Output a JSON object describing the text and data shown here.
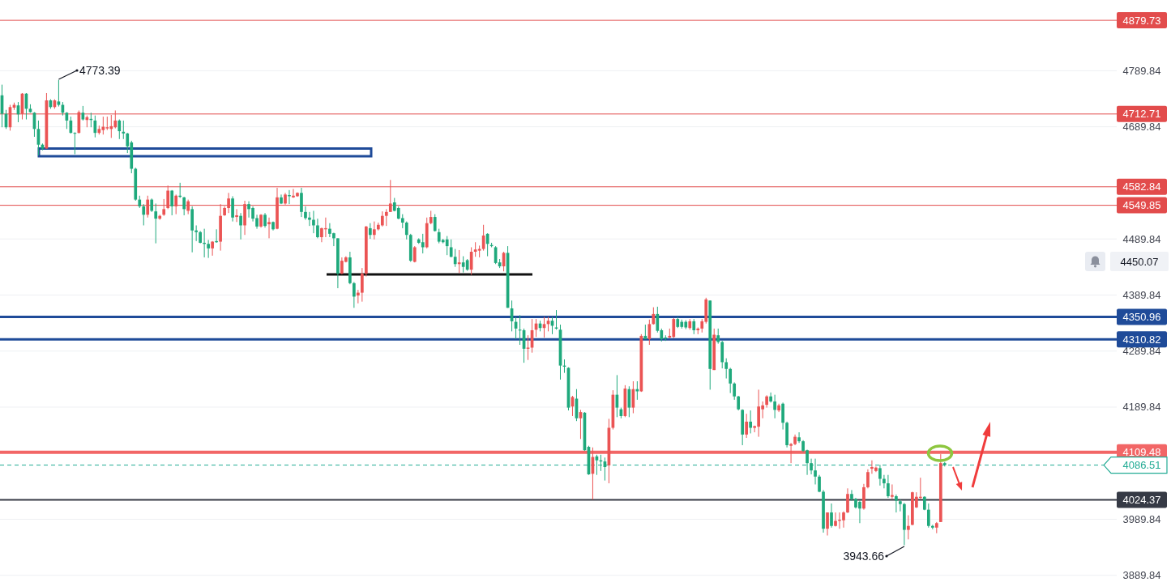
{
  "chart_data": {
    "type": "candlestick",
    "categories": [
      null,
      null,
      null,
      null,
      null,
      null,
      null,
      null,
      null,
      null,
      null,
      null,
      null,
      null,
      null,
      null,
      null,
      null,
      null,
      null,
      null,
      null,
      null,
      null,
      null,
      null,
      null,
      null,
      null,
      null,
      null,
      null,
      null,
      null,
      null,
      null,
      null,
      null,
      null,
      null,
      null,
      null,
      null,
      null,
      null,
      null,
      null,
      null,
      null,
      null,
      null,
      null,
      null,
      null,
      null,
      null,
      null,
      null,
      null,
      null,
      null,
      null,
      null,
      null,
      null,
      null,
      null,
      null,
      null,
      null,
      null,
      null,
      null,
      null,
      null,
      null,
      null,
      null,
      null,
      null,
      null,
      null,
      null,
      null,
      null,
      null,
      null,
      null,
      null,
      null,
      null,
      null,
      null,
      null,
      null,
      null,
      null,
      null,
      null,
      null,
      null,
      null,
      null,
      null,
      null,
      null,
      null,
      null,
      null,
      null,
      null,
      null,
      null,
      null,
      null,
      null,
      null,
      null,
      null,
      null,
      null,
      null,
      null,
      null,
      null,
      null,
      null,
      null,
      null,
      null,
      null,
      null,
      null,
      null,
      null,
      null,
      null,
      null,
      null,
      null,
      null,
      null,
      null,
      null,
      null,
      null,
      null,
      null,
      null,
      null,
      null,
      null,
      null,
      null,
      null,
      null,
      null,
      null,
      null,
      null,
      null,
      null,
      null,
      null,
      null,
      null,
      null,
      null,
      null,
      null,
      null,
      null,
      null,
      null,
      null,
      null,
      null,
      null,
      null,
      null,
      null,
      null,
      null,
      null,
      null,
      null,
      null,
      null,
      null,
      null,
      null,
      null,
      null,
      null,
      null,
      null,
      null,
      null,
      null,
      null,
      null,
      null,
      null,
      null,
      null,
      null,
      null,
      null,
      null,
      null,
      null,
      null,
      null,
      null,
      null,
      null,
      null,
      null,
      null,
      null,
      null,
      null,
      null,
      null,
      null,
      null,
      null,
      null,
      null,
      null,
      null,
      null,
      null,
      null,
      null,
      null,
      null,
      null,
      null,
      null,
      null,
      null,
      null,
      null,
      null,
      null,
      null,
      null,
      null,
      null,
      null,
      null,
      null,
      null,
      null,
      null,
      null,
      null,
      null,
      null,
      null,
      null,
      null,
      null,
      null,
      null,
      null,
      null,
      null,
      null,
      null,
      null,
      null,
      null,
      null,
      null
    ],
    "ohlc": [
      [
        4746,
        4765,
        4689,
        4713
      ],
      [
        4713,
        4720,
        4686,
        4689
      ],
      [
        4689,
        4729,
        4683,
        4725
      ],
      [
        4724,
        4733,
        4720,
        4729
      ],
      [
        4728,
        4734,
        4698,
        4712
      ],
      [
        4713,
        4750,
        4703,
        4749
      ],
      [
        4749,
        4750,
        4703,
        4722
      ],
      [
        4722,
        4730,
        4715,
        4716
      ],
      [
        4715,
        4716,
        4672,
        4686
      ],
      [
        4686,
        4701,
        4639,
        4658
      ],
      [
        4658,
        4660,
        4648,
        4651
      ],
      [
        4651,
        4750,
        4651,
        4737
      ],
      [
        4737,
        4739,
        4722,
        4725
      ],
      [
        4725,
        4739,
        4722,
        4737
      ],
      [
        4735,
        4773.39,
        4726,
        4729
      ],
      [
        4729,
        4734,
        4710,
        4715
      ],
      [
        4715,
        4716,
        4686,
        4701
      ],
      [
        4701,
        4708,
        4678,
        4679
      ],
      [
        4679,
        4680,
        4641,
        4678
      ],
      [
        4679,
        4719,
        4678,
        4716
      ],
      [
        4715,
        4727,
        4701,
        4703
      ],
      [
        4702,
        4710,
        4689,
        4707
      ],
      [
        4704,
        4715,
        4689,
        4702
      ],
      [
        4701,
        4710,
        4671,
        4679
      ],
      [
        4679,
        4692,
        4676,
        4686
      ],
      [
        4684,
        4708,
        4676,
        4690
      ],
      [
        4687,
        4708,
        4684,
        4689
      ],
      [
        4686,
        4711,
        4670,
        4691
      ],
      [
        4689,
        4719,
        4687,
        4701
      ],
      [
        4701,
        4703,
        4668,
        4682
      ],
      [
        4681,
        4701,
        4668,
        4678
      ],
      [
        4678,
        4679,
        4643,
        4655
      ],
      [
        4662,
        4665,
        4607,
        4615
      ],
      [
        4615,
        4617,
        4558,
        4560
      ],
      [
        4560,
        4567,
        4545,
        4548
      ],
      [
        4548,
        4552,
        4514,
        4533
      ],
      [
        4533,
        4567,
        4528,
        4560
      ],
      [
        4560,
        4562,
        4538,
        4540
      ],
      [
        4539,
        4553,
        4482,
        4526
      ],
      [
        4526,
        4533,
        4524,
        4531
      ],
      [
        4533,
        4561,
        4531,
        4543
      ],
      [
        4545,
        4585,
        4543,
        4576
      ],
      [
        4576,
        4577,
        4532,
        4548
      ],
      [
        4548,
        4569,
        4534,
        4567
      ],
      [
        4567,
        4590,
        4563,
        4565
      ],
      [
        4564,
        4565,
        4532,
        4543
      ],
      [
        4540,
        4560,
        4534,
        4557
      ],
      [
        4543,
        4548,
        4466,
        4505
      ],
      [
        4505,
        4514,
        4486,
        4502
      ],
      [
        4502,
        4504,
        4482,
        4483
      ],
      [
        4483,
        4508,
        4457,
        4481
      ],
      [
        4481,
        4488,
        4456,
        4473
      ],
      [
        4473,
        4486,
        4460,
        4485
      ],
      [
        4486,
        4507,
        4483,
        4484
      ],
      [
        4485,
        4552,
        4469,
        4531
      ],
      [
        4532,
        4548,
        4531,
        4545
      ],
      [
        4545,
        4572,
        4536,
        4562
      ],
      [
        4562,
        4566,
        4521,
        4528
      ],
      [
        4529,
        4543,
        4520,
        4532
      ],
      [
        4531,
        4536,
        4489,
        4514
      ],
      [
        4514,
        4558,
        4497,
        4552
      ],
      [
        4552,
        4557,
        4528,
        4543
      ],
      [
        4545,
        4548,
        4521,
        4526
      ],
      [
        4527,
        4533,
        4508,
        4512
      ],
      [
        4512,
        4534,
        4510,
        4533
      ],
      [
        4533,
        4536,
        4510,
        4513
      ],
      [
        4516,
        4528,
        4491,
        4520
      ],
      [
        4520,
        4521,
        4505,
        4507
      ],
      [
        4508,
        4581,
        4507,
        4564
      ],
      [
        4564,
        4569,
        4552,
        4553
      ],
      [
        4553,
        4572,
        4551,
        4569
      ],
      [
        4568,
        4577,
        4552,
        4566
      ],
      [
        4564,
        4579,
        4563,
        4567
      ],
      [
        4566,
        4573,
        4565,
        4572
      ],
      [
        4572,
        4581,
        4529,
        4538
      ],
      [
        4538,
        4548,
        4524,
        4527
      ],
      [
        4528,
        4538,
        4513,
        4524
      ],
      [
        4524,
        4540,
        4500,
        4514
      ],
      [
        4514,
        4526,
        4491,
        4493
      ],
      [
        4493,
        4510,
        4484,
        4509
      ],
      [
        4507,
        4528,
        4493,
        4509
      ],
      [
        4508,
        4518,
        4493,
        4499
      ],
      [
        4500,
        4501,
        4477,
        4491
      ],
      [
        4491,
        4491,
        4402,
        4428
      ],
      [
        4428,
        4457,
        4427,
        4451
      ],
      [
        4449,
        4459,
        4448,
        4457
      ],
      [
        4457,
        4467,
        4409,
        4411
      ],
      [
        4411,
        4413,
        4367,
        4387
      ],
      [
        4389,
        4399,
        4375,
        4394
      ],
      [
        4394,
        4438,
        4378,
        4428
      ],
      [
        4428,
        4513,
        4423,
        4512
      ],
      [
        4509,
        4518,
        4490,
        4497
      ],
      [
        4497,
        4521,
        4489,
        4507
      ],
      [
        4507,
        4519,
        4505,
        4515
      ],
      [
        4514,
        4539,
        4512,
        4531
      ],
      [
        4531,
        4543,
        4513,
        4538
      ],
      [
        4538,
        4595,
        4538,
        4553
      ],
      [
        4555,
        4563,
        4539,
        4540
      ],
      [
        4545,
        4548,
        4525,
        4526
      ],
      [
        4527,
        4534,
        4509,
        4519
      ],
      [
        4519,
        4521,
        4489,
        4497
      ],
      [
        4497,
        4499,
        4449,
        4451
      ],
      [
        4449,
        4477,
        4448,
        4475
      ],
      [
        4489,
        4491,
        4481,
        4483
      ],
      [
        4484,
        4499,
        4464,
        4475
      ],
      [
        4475,
        4528,
        4473,
        4518
      ],
      [
        4518,
        4540,
        4516,
        4529
      ],
      [
        4529,
        4534,
        4503,
        4504
      ],
      [
        4502,
        4508,
        4482,
        4485
      ],
      [
        4488,
        4490,
        4482,
        4484
      ],
      [
        4489,
        4495,
        4461,
        4477
      ],
      [
        4475,
        4489,
        4457,
        4458
      ],
      [
        4458,
        4472,
        4440,
        4445
      ],
      [
        4445,
        4470,
        4429,
        4448
      ],
      [
        4448,
        4459,
        4430,
        4440
      ],
      [
        4452,
        4454,
        4433,
        4435
      ],
      [
        4435,
        4475,
        4426,
        4467
      ],
      [
        4467,
        4484,
        4458,
        4471
      ],
      [
        4469,
        4478,
        4457,
        4472
      ],
      [
        4472,
        4515,
        4469,
        4496
      ],
      [
        4499,
        4500,
        4459,
        4481
      ],
      [
        4479,
        4483,
        4475,
        4477
      ],
      [
        4475,
        4477,
        4445,
        4447
      ],
      [
        4448,
        4454,
        4438,
        4441
      ],
      [
        4441,
        4467,
        4432,
        4465
      ],
      [
        4465,
        4477,
        4367,
        4367
      ],
      [
        4366,
        4380,
        4325,
        4343
      ],
      [
        4342,
        4351,
        4311,
        4330
      ],
      [
        4328,
        4354,
        4301,
        4327
      ],
      [
        4327,
        4330,
        4269,
        4294
      ],
      [
        4294,
        4318,
        4274,
        4296
      ],
      [
        4296,
        4347,
        4287,
        4327
      ],
      [
        4328,
        4347,
        4315,
        4339
      ],
      [
        4339,
        4344,
        4325,
        4331
      ],
      [
        4331,
        4351,
        4314,
        4338
      ],
      [
        4338,
        4351,
        4325,
        4344
      ],
      [
        4344,
        4351,
        4320,
        4335
      ],
      [
        4332,
        4363,
        4328,
        4330
      ],
      [
        4328,
        4337,
        4239,
        4264
      ],
      [
        4264,
        4275,
        4251,
        4262
      ],
      [
        4260,
        4261,
        4184,
        4189
      ],
      [
        4191,
        4210,
        4174,
        4208
      ],
      [
        4205,
        4222,
        4165,
        4170
      ],
      [
        4170,
        4185,
        4133,
        4181
      ],
      [
        4180,
        4181,
        4112,
        4113
      ],
      [
        4119,
        4121,
        4069,
        4070
      ],
      [
        4071,
        4118,
        4025,
        4101
      ],
      [
        4102,
        4105,
        4069,
        4095
      ],
      [
        4095,
        4105,
        4076,
        4093
      ],
      [
        4093,
        4100,
        4059,
        4083
      ],
      [
        4086,
        4169,
        4054,
        4153
      ],
      [
        4153,
        4220,
        4150,
        4212
      ],
      [
        4212,
        4247,
        4172,
        4189
      ],
      [
        4186,
        4189,
        4170,
        4174
      ],
      [
        4174,
        4229,
        4172,
        4223
      ],
      [
        4222,
        4227,
        4172,
        4189
      ],
      [
        4189,
        4236,
        4179,
        4222
      ],
      [
        4222,
        4236,
        4203,
        4218
      ],
      [
        4218,
        4320,
        4217,
        4317
      ],
      [
        4317,
        4337,
        4311,
        4311
      ],
      [
        4311,
        4346,
        4301,
        4338
      ],
      [
        4338,
        4368,
        4337,
        4356
      ],
      [
        4356,
        4369,
        4323,
        4326
      ],
      [
        4327,
        4330,
        4307,
        4311
      ],
      [
        4314,
        4318,
        4308,
        4312
      ],
      [
        4314,
        4330,
        4313,
        4317
      ],
      [
        4315,
        4349,
        4313,
        4347
      ],
      [
        4347,
        4351,
        4331,
        4333
      ],
      [
        4342,
        4346,
        4330,
        4333
      ],
      [
        4342,
        4345,
        4329,
        4332
      ],
      [
        4331,
        4347,
        4328,
        4343
      ],
      [
        4343,
        4347,
        4320,
        4327
      ],
      [
        4327,
        4332,
        4320,
        4330
      ],
      [
        4330,
        4347,
        4323,
        4343
      ],
      [
        4342,
        4385,
        4339,
        4382
      ],
      [
        4380,
        4380,
        4221,
        4258
      ],
      [
        4256,
        4330,
        4256,
        4319
      ],
      [
        4318,
        4330,
        4303,
        4306
      ],
      [
        4306,
        4308,
        4259,
        4270
      ],
      [
        4270,
        4277,
        4241,
        4258
      ],
      [
        4258,
        4260,
        4215,
        4232
      ],
      [
        4232,
        4234,
        4203,
        4209
      ],
      [
        4209,
        4210,
        4184,
        4186
      ],
      [
        4185,
        4186,
        4122,
        4141
      ],
      [
        4141,
        4178,
        4135,
        4164
      ],
      [
        4164,
        4184,
        4143,
        4153
      ],
      [
        4153,
        4157,
        4145,
        4156
      ],
      [
        4155,
        4221,
        4137,
        4191
      ],
      [
        4186,
        4200,
        4170,
        4193
      ],
      [
        4194,
        4211,
        4189,
        4209
      ],
      [
        4209,
        4216,
        4198,
        4200
      ],
      [
        4200,
        4212,
        4170,
        4185
      ],
      [
        4184,
        4196,
        4181,
        4193
      ],
      [
        4196,
        4198,
        4150,
        4162
      ],
      [
        4162,
        4164,
        4118,
        4122
      ],
      [
        4121,
        4126,
        4090,
        4124
      ],
      [
        4124,
        4141,
        4122,
        4137
      ],
      [
        4136,
        4145,
        4126,
        4129
      ],
      [
        4129,
        4131,
        4110,
        4112
      ],
      [
        4113,
        4114,
        4069,
        4090
      ],
      [
        4090,
        4098,
        4070,
        4077
      ],
      [
        4077,
        4098,
        4052,
        4066
      ],
      [
        4066,
        4069,
        4038,
        4039
      ],
      [
        4039,
        4042,
        3966,
        3973
      ],
      [
        3973,
        4002,
        3961,
        4002
      ],
      [
        4002,
        4018,
        3975,
        3978
      ],
      [
        3978,
        4002,
        3977,
        3987
      ],
      [
        3987,
        4002,
        3973,
        3989
      ],
      [
        3988,
        4004,
        3975,
        4002
      ],
      [
        4002,
        4045,
        4001,
        4035
      ],
      [
        4035,
        4042,
        4023,
        4026
      ],
      [
        4026,
        4028,
        4009,
        4011
      ],
      [
        4021,
        4023,
        3983,
        4009
      ],
      [
        4009,
        4053,
        4007,
        4047
      ],
      [
        4047,
        4079,
        4045,
        4074
      ],
      [
        4080,
        4095,
        4071,
        4083
      ],
      [
        4076,
        4084,
        4074,
        4082
      ],
      [
        4081,
        4087,
        4050,
        4062
      ],
      [
        4062,
        4069,
        4045,
        4054
      ],
      [
        4054,
        4069,
        4028,
        4031
      ],
      [
        4030,
        4052,
        4026,
        4033
      ],
      [
        4031,
        4034,
        4002,
        4023
      ],
      [
        4022,
        4025,
        4004,
        4017
      ],
      [
        4017,
        4019,
        3943.66,
        3971
      ],
      [
        3971,
        3997,
        3954,
        3978
      ],
      [
        3980,
        4039,
        3979,
        4038
      ],
      [
        4011,
        4038,
        4010,
        4030
      ],
      [
        4028,
        4064,
        4026,
        4030
      ],
      [
        4030,
        4031,
        4006,
        4007
      ],
      [
        4007,
        4018,
        3975,
        3978
      ],
      [
        3978,
        3980,
        3972,
        3975
      ],
      [
        3975,
        3985,
        3965,
        3983
      ],
      [
        3985,
        4106,
        3985,
        4090
      ],
      [
        4090,
        4092,
        4084,
        4086.51
      ],
      null,
      null,
      null,
      null,
      null,
      null,
      null,
      null,
      null,
      null,
      null,
      null,
      null,
      null,
      null,
      null,
      null,
      null,
      null,
      null,
      null,
      null,
      null,
      null,
      null,
      null,
      null,
      null,
      null,
      null,
      null,
      null,
      null,
      null,
      null,
      null,
      null,
      null,
      null,
      null,
      null,
      null
    ],
    "colors": [
      "#1fa97c",
      "#1fa97c",
      "#eb5454",
      "#eb5454",
      "#1fa97c",
      "#eb5454",
      "#1fa97c",
      "#1fa97c",
      "#1fa97c",
      "#1fa97c",
      "#1fa97c",
      "#eb5454",
      "#1fa97c",
      "#eb5454",
      "#1fa97c",
      "#1fa97c",
      "#1fa97c",
      "#1fa97c",
      "#1fa97c",
      "#eb5454",
      "#1fa97c",
      "#eb5454",
      "#1fa97c",
      "#1fa97c",
      "#eb5454",
      "#eb5454",
      "#eb5454",
      "#eb5454",
      "#eb5454",
      "#1fa97c",
      "#1fa97c",
      "#1fa97c",
      "#1fa97c",
      "#1fa97c",
      "#1fa97c",
      "#1fa97c",
      "#eb5454",
      "#1fa97c",
      "#1fa97c",
      "#eb5454",
      "#eb5454",
      "#eb5454",
      "#1fa97c",
      "#eb5454",
      "#1fa97c",
      "#1fa97c",
      "#eb5454",
      "#1fa97c",
      "#1fa97c",
      "#1fa97c",
      "#1fa97c",
      "#1fa97c",
      "#eb5454",
      "#1fa97c",
      "#eb5454",
      "#eb5454",
      "#eb5454",
      "#1fa97c",
      "#eb5454",
      "#1fa97c",
      "#eb5454",
      "#1fa97c",
      "#1fa97c",
      "#1fa97c",
      "#eb5454",
      "#1fa97c",
      "#eb5454",
      "#1fa97c",
      "#eb5454",
      "#1fa97c",
      "#eb5454",
      "#1fa97c",
      "#eb5454",
      "#eb5454",
      "#1fa97c",
      "#1fa97c",
      "#1fa97c",
      "#1fa97c",
      "#1fa97c",
      "#eb5454",
      "#eb5454",
      "#1fa97c",
      "#1fa97c",
      "#1fa97c",
      "#eb5454",
      "#eb5454",
      "#1fa97c",
      "#1fa97c",
      "#eb5454",
      "#eb5454",
      "#eb5454",
      "#1fa97c",
      "#eb5454",
      "#eb5454",
      "#eb5454",
      "#eb5454",
      "#eb5454",
      "#1fa97c",
      "#1fa97c",
      "#1fa97c",
      "#1fa97c",
      "#1fa97c",
      "#eb5454",
      "#1fa97c",
      "#1fa97c",
      "#eb5454",
      "#eb5454",
      "#1fa97c",
      "#1fa97c",
      "#1fa97c",
      "#1fa97c",
      "#1fa97c",
      "#1fa97c",
      "#eb5454",
      "#1fa97c",
      "#1fa97c",
      "#eb5454",
      "#eb5454",
      "#eb5454",
      "#eb5454",
      "#1fa97c",
      "#1fa97c",
      "#1fa97c",
      "#1fa97c",
      "#eb5454",
      "#1fa97c",
      "#1fa97c",
      "#1fa97c",
      "#1fa97c",
      "#1fa97c",
      "#eb5454",
      "#eb5454",
      "#eb5454",
      "#1fa97c",
      "#eb5454",
      "#eb5454",
      "#1fa97c",
      "#1fa97c",
      "#1fa97c",
      "#1fa97c",
      "#1fa97c",
      "#eb5454",
      "#1fa97c",
      "#eb5454",
      "#1fa97c",
      "#1fa97c",
      "#eb5454",
      "#1fa97c",
      "#1fa97c",
      "#1fa97c",
      "#eb5454",
      "#eb5454",
      "#1fa97c",
      "#1fa97c",
      "#eb5454",
      "#1fa97c",
      "#eb5454",
      "#1fa97c",
      "#eb5454",
      "#1fa97c",
      "#eb5454",
      "#eb5454",
      "#1fa97c",
      "#1fa97c",
      "#1fa97c",
      "#eb5454",
      "#eb5454",
      "#1fa97c",
      "#1fa97c",
      "#1fa97c",
      "#eb5454",
      "#1fa97c",
      "#eb5454",
      "#eb5454",
      "#eb5454",
      "#1fa97c",
      "#eb5454",
      "#1fa97c",
      "#1fa97c",
      "#1fa97c",
      "#1fa97c",
      "#1fa97c",
      "#1fa97c",
      "#1fa97c",
      "#eb5454",
      "#1fa97c",
      "#eb5454",
      "#eb5454",
      "#eb5454",
      "#eb5454",
      "#1fa97c",
      "#1fa97c",
      "#eb5454",
      "#1fa97c",
      "#1fa97c",
      "#eb5454",
      "#eb5454",
      "#1fa97c",
      "#1fa97c",
      "#1fa97c",
      "#1fa97c",
      "#1fa97c",
      "#1fa97c",
      "#1fa97c",
      "#eb5454",
      "#1fa97c",
      "#eb5454",
      "#eb5454",
      "#eb5454",
      "#eb5454",
      "#1fa97c",
      "#1fa97c",
      "#1fa97c",
      "#eb5454",
      "#eb5454",
      "#eb5454",
      "#eb5454",
      "#1fa97c",
      "#1fa97c",
      "#1fa97c",
      "#eb5454",
      "#1fa97c",
      "#1fa97c",
      "#1fa97c",
      "#eb5454",
      "#eb5454",
      "#eb5454",
      "#eb5454",
      "#1fa97c",
      "#1fa97c",
      "#1fa97c",
      "#eb5454",
      "#eb5454",
      "#1fa97c",
      null,
      null,
      null,
      null,
      null,
      null,
      null,
      null,
      null,
      null,
      null,
      null,
      null,
      null,
      null,
      null,
      null,
      null,
      null,
      null,
      null,
      null,
      null,
      null,
      null,
      null,
      null,
      null,
      null,
      null,
      null,
      null,
      null,
      null,
      null,
      null,
      null,
      null,
      null,
      null,
      null,
      null
    ],
    "ylim": [
      3878,
      4916
    ],
    "yticks": [
      3889.84,
      3989.84,
      4189.84,
      4289.84,
      4389.84,
      4489.84,
      4689.84,
      4789.84
    ],
    "grid": "y",
    "ref_lines": [
      {
        "axis": "y",
        "value": 4879.73,
        "label": "4879.73",
        "color": "#e24c4c"
      },
      {
        "axis": "y",
        "value": 4712.71,
        "label": "4712.71",
        "color": "#e24c4c"
      },
      {
        "axis": "y",
        "value": 4582.84,
        "label": "4582.84",
        "color": "#e24c4c"
      },
      {
        "axis": "y",
        "value": 4549.85,
        "label": "4549.85",
        "color": "#e24c4c"
      },
      {
        "axis": "y",
        "value": 4350.96,
        "label": "4350.96",
        "color": "#1f4b99"
      },
      {
        "axis": "y",
        "value": 4310.82,
        "label": "4310.82",
        "color": "#1f4b99"
      },
      {
        "axis": "y",
        "value": 4109.48,
        "label": "4109.48",
        "color": "#f26666"
      },
      {
        "axis": "y",
        "value": 4086.51,
        "label": "4086.51",
        "color": "#22ab94",
        "line_style": "dashed"
      },
      {
        "axis": "y",
        "value": 4024.37,
        "label": "4024.37",
        "color": "#363a45"
      }
    ],
    "annotations": [
      "4773.39",
      "3943.66",
      "4450.07"
    ]
  }
}
